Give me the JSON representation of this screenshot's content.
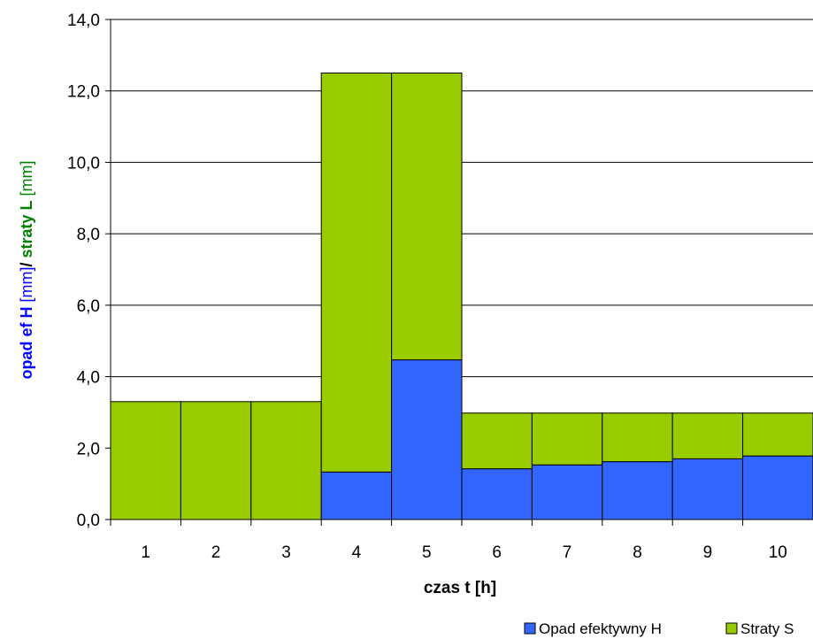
{
  "chart_data": {
    "type": "bar",
    "stacked": true,
    "categories": [
      "1",
      "2",
      "3",
      "4",
      "5",
      "6",
      "7",
      "8",
      "9",
      "10"
    ],
    "series": [
      {
        "name": "Opad efektywny H",
        "color": "#3366ff",
        "values": [
          0,
          0,
          0,
          1.33,
          4.47,
          1.42,
          1.53,
          1.62,
          1.7,
          1.78
        ]
      },
      {
        "name": "Straty S",
        "color": "#99cc00",
        "values": [
          3.3,
          3.3,
          3.3,
          11.17,
          8.03,
          1.56,
          1.45,
          1.36,
          1.28,
          1.2
        ]
      }
    ],
    "ylim": [
      0,
      14
    ],
    "yticks": [
      "0,0",
      "2,0",
      "4,0",
      "6,0",
      "8,0",
      "10,0",
      "12,0",
      "14,0"
    ],
    "xlabel": "czas t [h]",
    "ylabel_parts": [
      {
        "text": "opad ef H",
        "color": "#0000ff",
        "bold": true
      },
      {
        "text": " [mm]",
        "color": "#0000ff",
        "bold": false
      },
      {
        "text": "/ ",
        "color": "#000000",
        "bold": true
      },
      {
        "text": "straty L",
        "color": "#008000",
        "bold": true
      },
      {
        "text": " [mm]",
        "color": "#008000",
        "bold": false
      }
    ],
    "grid": true,
    "legend": "bottom-right"
  }
}
